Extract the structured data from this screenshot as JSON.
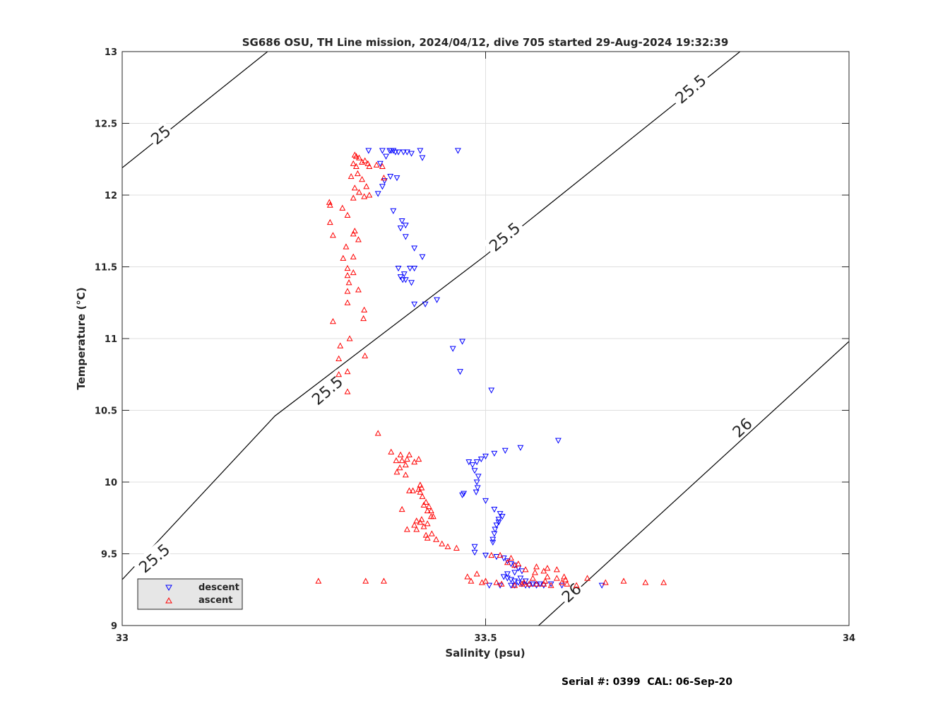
{
  "footer": "Serial #: 0399  CAL: 06-Sep-20",
  "colors": {
    "descent": "#0000ff",
    "ascent": "#ff0000",
    "contour": "#000000",
    "grid": "#dfdfdf",
    "legend_bg": "#e6e6e6"
  },
  "chart_data": {
    "type": "scatter",
    "title": "SG686 OSU, TH Line mission, 2024/04/12, dive 705 started 29-Aug-2024 19:32:39",
    "xlabel": "Salinity (psu)",
    "ylabel": "Temperature (°C)",
    "xlim": [
      33,
      34
    ],
    "ylim": [
      9,
      13
    ],
    "x_ticks": [
      33,
      33.5,
      34
    ],
    "x_tick_labels": [
      "33",
      "33.5",
      "34"
    ],
    "y_ticks": [
      9,
      9.5,
      10,
      10.5,
      11,
      11.5,
      12,
      12.5,
      13
    ],
    "y_tick_labels": [
      "9",
      "9.5",
      "10",
      "10.5",
      "11",
      "11.5",
      "12",
      "12.5",
      "13"
    ],
    "grid": true,
    "legend_position": "bottom-left",
    "contours": [
      {
        "label": "25",
        "points": [
          [
            33,
            12.19
          ],
          [
            33.2,
            13
          ]
        ],
        "label_at": [
          33.053,
          12.42
        ]
      },
      {
        "label": "25.5",
        "points": [
          [
            33,
            9.32
          ],
          [
            33.21,
            10.46
          ],
          [
            33.5,
            11.58
          ],
          [
            33.85,
            13
          ]
        ],
        "label_positions": [
          [
            33.044,
            9.47
          ],
          [
            33.282,
            10.64
          ],
          [
            33.526,
            11.71
          ],
          [
            33.782,
            12.74
          ]
        ]
      },
      {
        "label": "26",
        "points": [
          [
            33.573,
            9
          ],
          [
            34,
            10.98
          ]
        ],
        "label_positions": [
          [
            33.618,
            9.23
          ],
          [
            33.853,
            10.38
          ]
        ]
      }
    ],
    "series": [
      {
        "name": "descent",
        "marker": "triangle-down",
        "points": [
          [
            33.339,
            12.31
          ],
          [
            33.358,
            12.31
          ],
          [
            33.368,
            12.31
          ],
          [
            33.37,
            12.31
          ],
          [
            33.373,
            12.31
          ],
          [
            33.376,
            12.3
          ],
          [
            33.38,
            12.3
          ],
          [
            33.387,
            12.3
          ],
          [
            33.392,
            12.3
          ],
          [
            33.398,
            12.29
          ],
          [
            33.41,
            12.31
          ],
          [
            33.462,
            12.31
          ],
          [
            33.413,
            12.26
          ],
          [
            33.363,
            12.27
          ],
          [
            33.355,
            12.22
          ],
          [
            33.369,
            12.13
          ],
          [
            33.378,
            12.12
          ],
          [
            33.361,
            12.1
          ],
          [
            33.358,
            12.06
          ],
          [
            33.352,
            12.01
          ],
          [
            33.373,
            11.89
          ],
          [
            33.385,
            11.82
          ],
          [
            33.383,
            11.77
          ],
          [
            33.39,
            11.79
          ],
          [
            33.39,
            11.71
          ],
          [
            33.402,
            11.63
          ],
          [
            33.413,
            11.57
          ],
          [
            33.38,
            11.49
          ],
          [
            33.396,
            11.49
          ],
          [
            33.402,
            11.49
          ],
          [
            33.388,
            11.45
          ],
          [
            33.386,
            11.41
          ],
          [
            33.39,
            11.41
          ],
          [
            33.398,
            11.39
          ],
          [
            33.383,
            11.43
          ],
          [
            33.402,
            11.24
          ],
          [
            33.417,
            11.24
          ],
          [
            33.433,
            11.27
          ],
          [
            33.455,
            10.93
          ],
          [
            33.468,
            10.98
          ],
          [
            33.465,
            10.77
          ],
          [
            33.508,
            10.64
          ],
          [
            33.477,
            10.14
          ],
          [
            33.482,
            10.12
          ],
          [
            33.488,
            10.14
          ],
          [
            33.494,
            10.16
          ],
          [
            33.5,
            10.18
          ],
          [
            33.512,
            10.2
          ],
          [
            33.527,
            10.22
          ],
          [
            33.548,
            10.24
          ],
          [
            33.6,
            10.29
          ],
          [
            33.485,
            10.08
          ],
          [
            33.49,
            10.04
          ],
          [
            33.488,
            10.0
          ],
          [
            33.489,
            9.96
          ],
          [
            33.487,
            9.93
          ],
          [
            33.47,
            9.92
          ],
          [
            33.468,
            9.91
          ],
          [
            33.5,
            9.87
          ],
          [
            33.512,
            9.81
          ],
          [
            33.52,
            9.78
          ],
          [
            33.523,
            9.76
          ],
          [
            33.518,
            9.74
          ],
          [
            33.518,
            9.72
          ],
          [
            33.515,
            9.7
          ],
          [
            33.513,
            9.67
          ],
          [
            33.512,
            9.64
          ],
          [
            33.51,
            9.6
          ],
          [
            33.51,
            9.58
          ],
          [
            33.485,
            9.55
          ],
          [
            33.485,
            9.51
          ],
          [
            33.5,
            9.49
          ],
          [
            33.515,
            9.48
          ],
          [
            33.525,
            9.47
          ],
          [
            33.53,
            9.45
          ],
          [
            33.535,
            9.43
          ],
          [
            33.54,
            9.42
          ],
          [
            33.545,
            9.4
          ],
          [
            33.55,
            9.38
          ],
          [
            33.54,
            9.37
          ],
          [
            33.53,
            9.36
          ],
          [
            33.525,
            9.34
          ],
          [
            33.53,
            9.33
          ],
          [
            33.535,
            9.32
          ],
          [
            33.54,
            9.31
          ],
          [
            33.545,
            9.3
          ],
          [
            33.55,
            9.29
          ],
          [
            33.555,
            9.28
          ],
          [
            33.56,
            9.28
          ],
          [
            33.565,
            9.29
          ],
          [
            33.57,
            9.28
          ],
          [
            33.58,
            9.28
          ],
          [
            33.54,
            9.28
          ],
          [
            33.535,
            9.28
          ],
          [
            33.52,
            9.28
          ],
          [
            33.505,
            9.28
          ],
          [
            33.548,
            9.33
          ],
          [
            33.555,
            9.31
          ],
          [
            33.575,
            9.29
          ],
          [
            33.59,
            9.29
          ],
          [
            33.605,
            9.28
          ],
          [
            33.66,
            9.28
          ]
        ]
      },
      {
        "name": "ascent",
        "marker": "triangle-up",
        "points": [
          [
            33.32,
            12.28
          ],
          [
            33.322,
            12.27
          ],
          [
            33.326,
            12.26
          ],
          [
            33.33,
            12.23
          ],
          [
            33.334,
            12.24
          ],
          [
            33.338,
            12.22
          ],
          [
            33.34,
            12.2
          ],
          [
            33.35,
            12.21
          ],
          [
            33.358,
            12.2
          ],
          [
            33.322,
            12.2
          ],
          [
            33.318,
            12.22
          ],
          [
            33.324,
            12.15
          ],
          [
            33.315,
            12.13
          ],
          [
            33.33,
            12.11
          ],
          [
            33.36,
            12.12
          ],
          [
            33.336,
            12.06
          ],
          [
            33.32,
            12.05
          ],
          [
            33.326,
            12.02
          ],
          [
            33.318,
            11.98
          ],
          [
            33.333,
            11.99
          ],
          [
            33.34,
            12.0
          ],
          [
            33.285,
            11.95
          ],
          [
            33.286,
            11.93
          ],
          [
            33.303,
            11.91
          ],
          [
            33.31,
            11.86
          ],
          [
            33.286,
            11.81
          ],
          [
            33.32,
            11.75
          ],
          [
            33.318,
            11.73
          ],
          [
            33.29,
            11.72
          ],
          [
            33.325,
            11.69
          ],
          [
            33.308,
            11.64
          ],
          [
            33.318,
            11.57
          ],
          [
            33.304,
            11.56
          ],
          [
            33.31,
            11.49
          ],
          [
            33.318,
            11.46
          ],
          [
            33.31,
            11.44
          ],
          [
            33.312,
            11.39
          ],
          [
            33.325,
            11.34
          ],
          [
            33.31,
            11.33
          ],
          [
            33.31,
            11.25
          ],
          [
            33.333,
            11.2
          ],
          [
            33.332,
            11.14
          ],
          [
            33.29,
            11.12
          ],
          [
            33.313,
            11.0
          ],
          [
            33.3,
            10.95
          ],
          [
            33.334,
            10.88
          ],
          [
            33.298,
            10.86
          ],
          [
            33.31,
            10.77
          ],
          [
            33.298,
            10.75
          ],
          [
            33.31,
            10.63
          ],
          [
            33.352,
            10.34
          ],
          [
            33.37,
            10.21
          ],
          [
            33.383,
            10.19
          ],
          [
            33.395,
            10.19
          ],
          [
            33.392,
            10.16
          ],
          [
            33.385,
            10.15
          ],
          [
            33.377,
            10.15
          ],
          [
            33.39,
            10.12
          ],
          [
            33.402,
            10.14
          ],
          [
            33.408,
            10.16
          ],
          [
            33.382,
            10.1
          ],
          [
            33.378,
            10.07
          ],
          [
            33.39,
            10.05
          ],
          [
            33.395,
            9.94
          ],
          [
            33.4,
            9.94
          ],
          [
            33.408,
            9.95
          ],
          [
            33.41,
            9.98
          ],
          [
            33.412,
            9.96
          ],
          [
            33.41,
            9.93
          ],
          [
            33.413,
            9.9
          ],
          [
            33.418,
            9.86
          ],
          [
            33.415,
            9.84
          ],
          [
            33.422,
            9.83
          ],
          [
            33.425,
            9.8
          ],
          [
            33.42,
            9.8
          ],
          [
            33.385,
            9.81
          ],
          [
            33.425,
            9.76
          ],
          [
            33.412,
            9.74
          ],
          [
            33.41,
            9.72
          ],
          [
            33.405,
            9.73
          ],
          [
            33.402,
            9.7
          ],
          [
            33.415,
            9.69
          ],
          [
            33.42,
            9.71
          ],
          [
            33.428,
            9.76
          ],
          [
            33.392,
            9.67
          ],
          [
            33.405,
            9.67
          ],
          [
            33.418,
            9.63
          ],
          [
            33.42,
            9.61
          ],
          [
            33.426,
            9.64
          ],
          [
            33.432,
            9.6
          ],
          [
            33.44,
            9.57
          ],
          [
            33.448,
            9.55
          ],
          [
            33.46,
            9.54
          ],
          [
            33.52,
            9.49
          ],
          [
            33.508,
            9.49
          ],
          [
            33.535,
            9.47
          ],
          [
            33.53,
            9.44
          ],
          [
            33.545,
            9.43
          ],
          [
            33.54,
            9.42
          ],
          [
            33.555,
            9.39
          ],
          [
            33.57,
            9.41
          ],
          [
            33.568,
            9.37
          ],
          [
            33.585,
            9.4
          ],
          [
            33.58,
            9.38
          ],
          [
            33.598,
            9.39
          ],
          [
            33.608,
            9.34
          ],
          [
            33.61,
            9.32
          ],
          [
            33.598,
            9.33
          ],
          [
            33.585,
            9.34
          ],
          [
            33.565,
            9.33
          ],
          [
            33.553,
            9.3
          ],
          [
            33.56,
            9.29
          ],
          [
            33.57,
            9.29
          ],
          [
            33.58,
            9.29
          ],
          [
            33.59,
            9.28
          ],
          [
            33.605,
            9.3
          ],
          [
            33.612,
            9.29
          ],
          [
            33.625,
            9.28
          ],
          [
            33.5,
            9.31
          ],
          [
            33.48,
            9.31
          ],
          [
            33.475,
            9.34
          ],
          [
            33.488,
            9.36
          ],
          [
            33.495,
            9.3
          ],
          [
            33.515,
            9.3
          ],
          [
            33.522,
            9.29
          ],
          [
            33.54,
            9.28
          ],
          [
            33.55,
            9.29
          ],
          [
            33.582,
            9.31
          ],
          [
            33.64,
            9.33
          ],
          [
            33.665,
            9.3
          ],
          [
            33.69,
            9.31
          ],
          [
            33.72,
            9.3
          ],
          [
            33.745,
            9.3
          ],
          [
            33.27,
            9.31
          ],
          [
            33.335,
            9.31
          ],
          [
            33.36,
            9.31
          ]
        ]
      }
    ]
  }
}
